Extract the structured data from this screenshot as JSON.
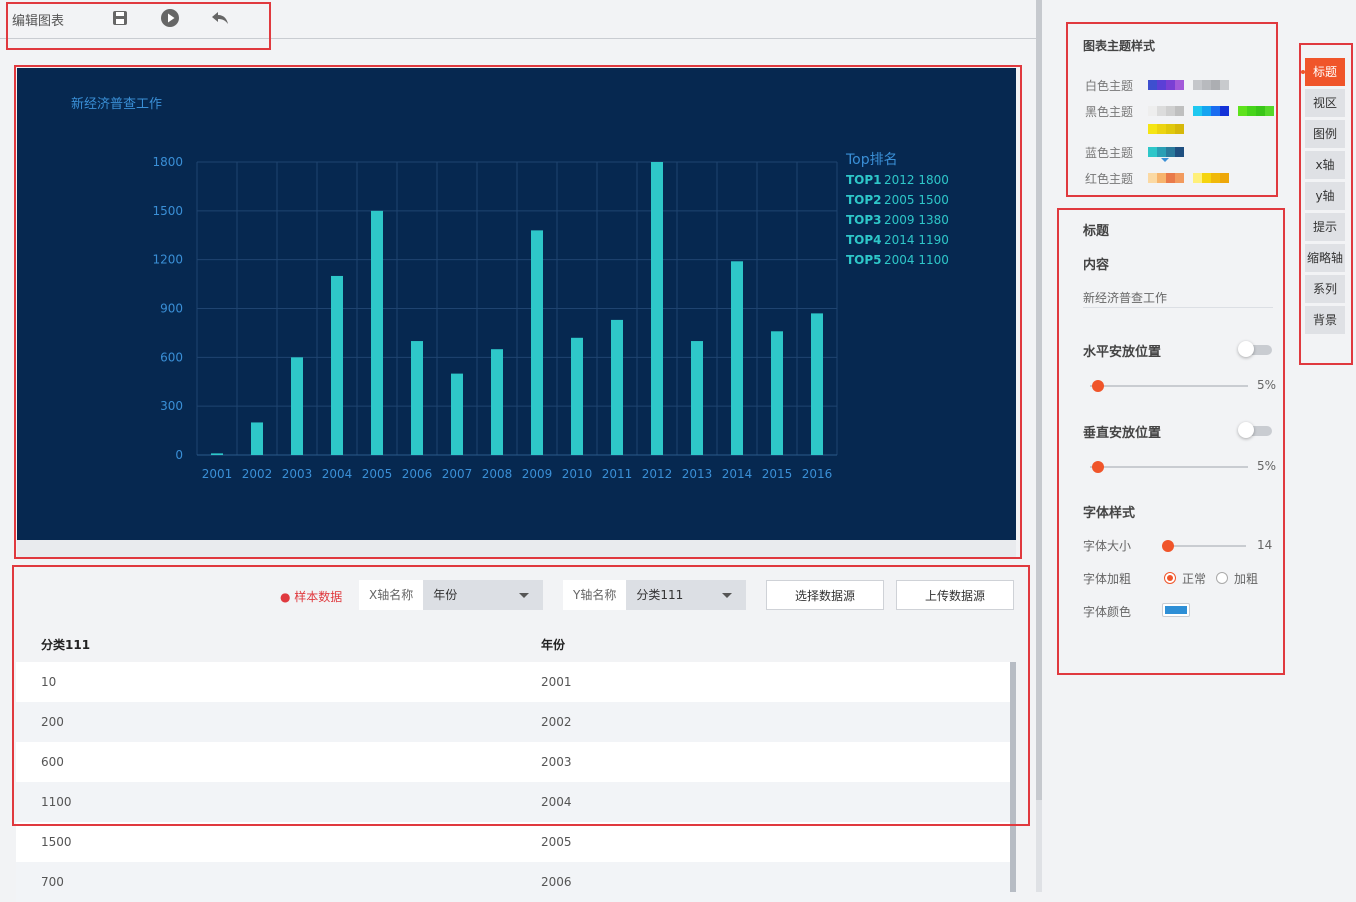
{
  "toolbar": {
    "title": "编辑图表"
  },
  "colors": {
    "chart_bg": "#062850",
    "bar": "#2ec7c9",
    "axis_text": "#3a8fd6",
    "accent": "#f0552a"
  },
  "chart_data": {
    "type": "bar",
    "title": "新经济普查工作",
    "categories": [
      "2001",
      "2002",
      "2003",
      "2004",
      "2005",
      "2006",
      "2007",
      "2008",
      "2009",
      "2010",
      "2011",
      "2012",
      "2013",
      "2014",
      "2015",
      "2016"
    ],
    "values": [
      10,
      200,
      600,
      1100,
      1500,
      700,
      500,
      650,
      1380,
      720,
      830,
      1800,
      700,
      1190,
      760,
      870
    ],
    "yticks": [
      "0",
      "300",
      "600",
      "900",
      "1200",
      "1500",
      "1800"
    ],
    "ylim": [
      0,
      1800
    ],
    "grid": true,
    "ranking": {
      "title": "Top排名",
      "items": [
        {
          "rank": "TOP1",
          "text": "2012 1800"
        },
        {
          "rank": "TOP2",
          "text": "2005 1500"
        },
        {
          "rank": "TOP3",
          "text": "2009 1380"
        },
        {
          "rank": "TOP4",
          "text": "2014 1190"
        },
        {
          "rank": "TOP5",
          "text": "2004 1100"
        }
      ]
    }
  },
  "data_panel": {
    "sample_label": "样本数据",
    "x_axis_label": "X轴名称",
    "x_axis_value": "年份",
    "y_axis_label": "Y轴名称",
    "y_axis_value": "分类111",
    "select_source": "选择数据源",
    "upload_source": "上传数据源",
    "columns": [
      "分类111",
      "年份"
    ],
    "rows": [
      [
        "10",
        "2001"
      ],
      [
        "200",
        "2002"
      ],
      [
        "600",
        "2003"
      ],
      [
        "1100",
        "2004"
      ],
      [
        "1500",
        "2005"
      ],
      [
        "700",
        "2006"
      ]
    ]
  },
  "theme_panel": {
    "heading": "图表主题样式",
    "white_label": "白色主题",
    "black_label": "黑色主题",
    "blue_label": "蓝色主题",
    "red_label": "红色主题"
  },
  "prop_panel": {
    "section": "标题",
    "content_label": "内容",
    "content_value": "新经济普查工作",
    "hpos_label": "水平安放位置",
    "hpos_value": "5%",
    "hpos_fraction": 0.05,
    "vpos_label": "垂直安放位置",
    "vpos_value": "5%",
    "vpos_fraction": 0.05,
    "font_style_label": "字体样式",
    "font_size_label": "字体大小",
    "font_size_value": "14",
    "font_weight_label": "字体加粗",
    "normal_label": "正常",
    "bold_label": "加粗",
    "font_color_label": "字体颜色",
    "font_color": "#2e8fd6"
  },
  "side_tabs": [
    "标题",
    "视区",
    "图例",
    "x轴",
    "y轴",
    "提示",
    "缩略轴",
    "系列",
    "背景"
  ]
}
